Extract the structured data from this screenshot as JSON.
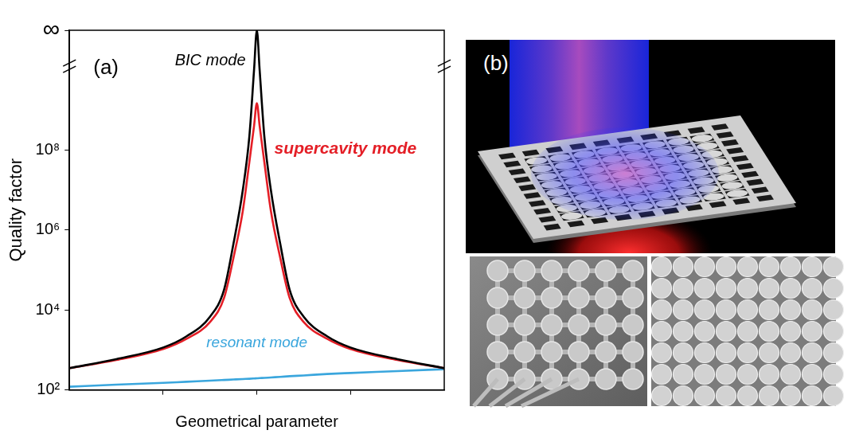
{
  "chart_data": {
    "type": "line",
    "panel_label": "(a)",
    "x_label": "Geometrical parameter",
    "y_label": "Quality factor",
    "log": "y",
    "grid": false,
    "tick_labels": "y",
    "xlim": [
      -2,
      2
    ],
    "xticks": [
      -1,
      0,
      1
    ],
    "ylim": [
      100,
      100000000000
    ],
    "yticks": [
      {
        "value": 100,
        "label": "10²"
      },
      {
        "value": 10000,
        "label": "10⁴"
      },
      {
        "value": 1000000,
        "label": "10⁶"
      },
      {
        "value": 100000000,
        "label": "10⁸"
      },
      {
        "value": 100000000000,
        "label": "∞"
      }
    ],
    "x": [
      -2,
      -1.5,
      -1,
      -0.75,
      -0.5,
      -0.35,
      -0.25,
      -0.15,
      -0.08,
      -0.03,
      0,
      0.03,
      0.08,
      0.15,
      0.25,
      0.35,
      0.5,
      0.75,
      1,
      1.5,
      2
    ],
    "series": [
      {
        "name": "BIC mode",
        "color": "#000000",
        "values": [
          350,
          590,
          1150,
          2200,
          6800,
          32000,
          450000,
          10000000,
          220000000,
          10000000000,
          100000000000,
          10000000000,
          220000000,
          10000000,
          450000,
          32000,
          6800,
          2200,
          1150,
          590,
          350
        ]
      },
      {
        "name": "supercavity mode",
        "color": "#e41e26",
        "values": [
          350,
          560,
          1050,
          1900,
          5000,
          20000,
          200000,
          3000000,
          50000000,
          400000000,
          1500000000,
          400000000,
          50000000,
          3000000,
          200000,
          20000,
          5000,
          1900,
          1050,
          560,
          350
        ]
      },
      {
        "name": "resonant mode",
        "color": "#3aa6dd",
        "values": [
          120,
          135,
          150,
          160,
          170,
          177,
          182,
          187,
          190,
          193,
          195,
          197,
          200,
          205,
          212,
          220,
          230,
          250,
          265,
          295,
          330
        ]
      }
    ]
  },
  "panel_b": {
    "label": "(b)"
  }
}
